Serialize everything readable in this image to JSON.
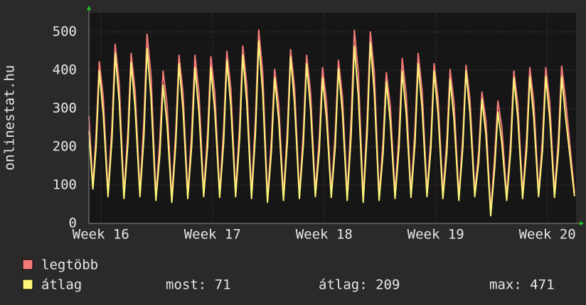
{
  "chart_data": {
    "type": "line",
    "ylabel": "onlinestat.hu",
    "xlim": [
      -0.75,
      29.8
    ],
    "ylim": [
      0,
      550
    ],
    "yticks": [
      0,
      100,
      200,
      300,
      400,
      500
    ],
    "xticks": [
      {
        "value": 0,
        "label": "Week 16"
      },
      {
        "value": 7,
        "label": "Week 17"
      },
      {
        "value": 14,
        "label": "Week 18"
      },
      {
        "value": 21,
        "label": "Week 19"
      },
      {
        "value": 28,
        "label": "Week 20"
      }
    ],
    "grid": true,
    "x": [
      -0.75,
      -0.5,
      -0.3,
      -0.1,
      0.15,
      0.45,
      0.7,
      0.9,
      1.15,
      1.45,
      1.7,
      1.9,
      2.15,
      2.45,
      2.7,
      2.9,
      3.15,
      3.45,
      3.7,
      3.9,
      4.15,
      4.45,
      4.7,
      4.9,
      5.15,
      5.45,
      5.7,
      5.9,
      6.15,
      6.45,
      6.7,
      6.9,
      7.15,
      7.45,
      7.7,
      7.9,
      8.15,
      8.45,
      8.7,
      8.9,
      9.15,
      9.45,
      9.7,
      9.9,
      10.15,
      10.45,
      10.7,
      10.9,
      11.15,
      11.45,
      11.7,
      11.9,
      12.15,
      12.45,
      12.7,
      12.9,
      13.15,
      13.45,
      13.7,
      13.9,
      14.15,
      14.45,
      14.7,
      14.9,
      15.15,
      15.45,
      15.7,
      15.9,
      16.15,
      16.45,
      16.7,
      16.9,
      17.15,
      17.45,
      17.7,
      17.9,
      18.15,
      18.45,
      18.7,
      18.9,
      19.15,
      19.45,
      19.7,
      19.9,
      20.15,
      20.45,
      20.7,
      20.9,
      21.15,
      21.45,
      21.7,
      21.9,
      22.15,
      22.45,
      22.7,
      22.9,
      23.15,
      23.45,
      23.7,
      23.9,
      24.15,
      24.45,
      24.7,
      24.9,
      25.15,
      25.45,
      25.7,
      25.9,
      26.15,
      26.45,
      26.7,
      26.9,
      27.15,
      27.45,
      27.7,
      27.9,
      28.15,
      28.45,
      28.7,
      28.9,
      29.15,
      29.7
    ],
    "series": [
      {
        "name": "legtöbb",
        "color": "#f47a7a",
        "values": [
          280,
          95,
          232,
          422,
          329,
          80,
          257,
          468,
          365,
          75,
          244,
          444,
          346,
          80,
          272,
          494,
          385,
          70,
          219,
          398,
          310,
          65,
          241,
          439,
          342,
          75,
          241,
          439,
          342,
          80,
          239,
          435,
          339,
          78,
          248,
          450,
          351,
          80,
          255,
          463,
          361,
          75,
          278,
          505,
          394,
          65,
          221,
          402,
          314,
          70,
          250,
          454,
          354,
          75,
          241,
          439,
          342,
          80,
          224,
          407,
          317,
          78,
          234,
          426,
          332,
          70,
          277,
          504,
          393,
          65,
          275,
          500,
          390,
          70,
          217,
          394,
          307,
          75,
          237,
          431,
          336,
          78,
          244,
          444,
          346,
          80,
          229,
          417,
          325,
          75,
          221,
          402,
          314,
          70,
          227,
          413,
          322,
          80,
          189,
          343,
          268,
          30,
          176,
          320,
          250,
          70,
          219,
          398,
          310,
          75,
          224,
          407,
          317,
          80,
          224,
          407,
          317,
          78,
          226,
          411,
          321,
          80
        ]
      },
      {
        "name": "átlag",
        "color": "#fcf67a",
        "values": [
          240,
          90,
          199,
          398,
          287,
          70,
          222,
          444,
          320,
          65,
          210,
          420,
          302,
          70,
          229,
          457,
          329,
          60,
          181,
          361,
          260,
          55,
          209,
          417,
          300,
          65,
          204,
          407,
          293,
          70,
          204,
          407,
          293,
          68,
          213,
          426,
          307,
          70,
          220,
          439,
          316,
          65,
          238,
          476,
          343,
          55,
          190,
          380,
          274,
          60,
          218,
          435,
          313,
          65,
          209,
          417,
          300,
          70,
          190,
          380,
          274,
          68,
          202,
          404,
          291,
          60,
          232,
          463,
          333,
          55,
          236,
          472,
          340,
          60,
          185,
          370,
          266,
          65,
          199,
          398,
          287,
          68,
          209,
          417,
          300,
          70,
          199,
          398,
          287,
          65,
          188,
          376,
          271,
          60,
          199,
          398,
          287,
          70,
          162,
          324,
          233,
          20,
          146,
          291,
          210,
          60,
          190,
          380,
          274,
          65,
          192,
          383,
          276,
          70,
          192,
          383,
          276,
          68,
          192,
          383,
          276,
          71
        ]
      }
    ],
    "stats": [
      "most: 71",
      "átlag: 209",
      "max: 471"
    ]
  }
}
